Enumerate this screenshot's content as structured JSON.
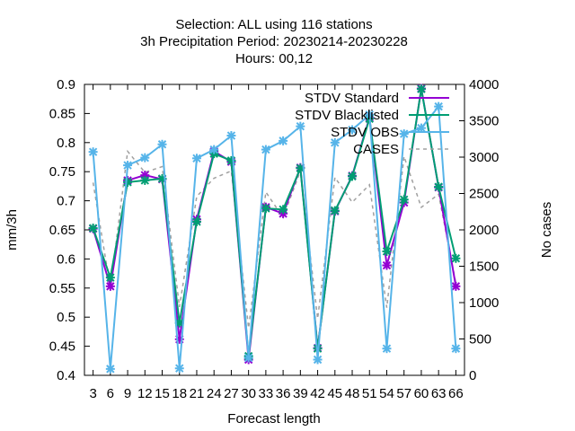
{
  "chart_data": {
    "type": "line",
    "title_lines": [
      "Selection: ALL using   116 stations",
      "3h Precipitation   Period: 20230214-20230228",
      "Hours:  00,12"
    ],
    "xlabel": "Forecast length",
    "ylabel": "mm/3h",
    "y2label": "No cases",
    "x": [
      3,
      6,
      9,
      12,
      15,
      18,
      21,
      24,
      27,
      30,
      33,
      36,
      39,
      42,
      45,
      48,
      51,
      54,
      57,
      60,
      63,
      66
    ],
    "ylim": [
      0.4,
      0.9
    ],
    "yticks": [
      "0.4",
      "0.45",
      "0.5",
      "0.55",
      "0.6",
      "0.65",
      "0.7",
      "0.75",
      "0.8",
      "0.85",
      "0.9"
    ],
    "y2lim": [
      0,
      4000
    ],
    "y2ticks": [
      "0",
      "500",
      "1000",
      "1500",
      "2000",
      "2500",
      "3000",
      "3500",
      "4000"
    ],
    "legend_position": "top-right",
    "grid": false,
    "series": [
      {
        "name": "STDV Standard",
        "color": "#9400d3",
        "marker": "x",
        "axis": "y1",
        "values": [
          0.652,
          0.553,
          0.735,
          0.744,
          0.737,
          0.462,
          0.668,
          0.785,
          0.767,
          0.427,
          0.689,
          0.678,
          0.757,
          0.447,
          0.682,
          0.743,
          0.843,
          0.589,
          0.697,
          0.893,
          0.723,
          0.553
        ]
      },
      {
        "name": "STDV Blacklisted",
        "color": "#009e73",
        "marker": "x",
        "axis": "y1",
        "values": [
          0.653,
          0.568,
          0.732,
          0.735,
          0.738,
          0.49,
          0.664,
          0.781,
          0.769,
          0.433,
          0.687,
          0.685,
          0.756,
          0.446,
          0.683,
          0.742,
          0.841,
          0.613,
          0.702,
          0.892,
          0.724,
          0.601
        ]
      },
      {
        "name": "STDV OBS",
        "color": "#56b4e9",
        "marker": "x",
        "axis": "y1",
        "values": [
          0.784,
          0.411,
          0.761,
          0.774,
          0.797,
          0.412,
          0.773,
          0.788,
          0.812,
          0.43,
          0.788,
          0.803,
          0.828,
          0.427,
          0.8,
          0.822,
          0.848,
          0.446,
          0.815,
          0.825,
          0.862,
          0.446
        ]
      },
      {
        "name": "CASES",
        "color": "#a0a0a0",
        "dashed": true,
        "axis": "y2",
        "values": [
          2650,
          1200,
          3080,
          2790,
          2870,
          940,
          2460,
          2710,
          2810,
          650,
          2520,
          2170,
          2810,
          780,
          2720,
          2380,
          2620,
          930,
          3010,
          2310,
          2490,
          1270
        ]
      }
    ]
  }
}
